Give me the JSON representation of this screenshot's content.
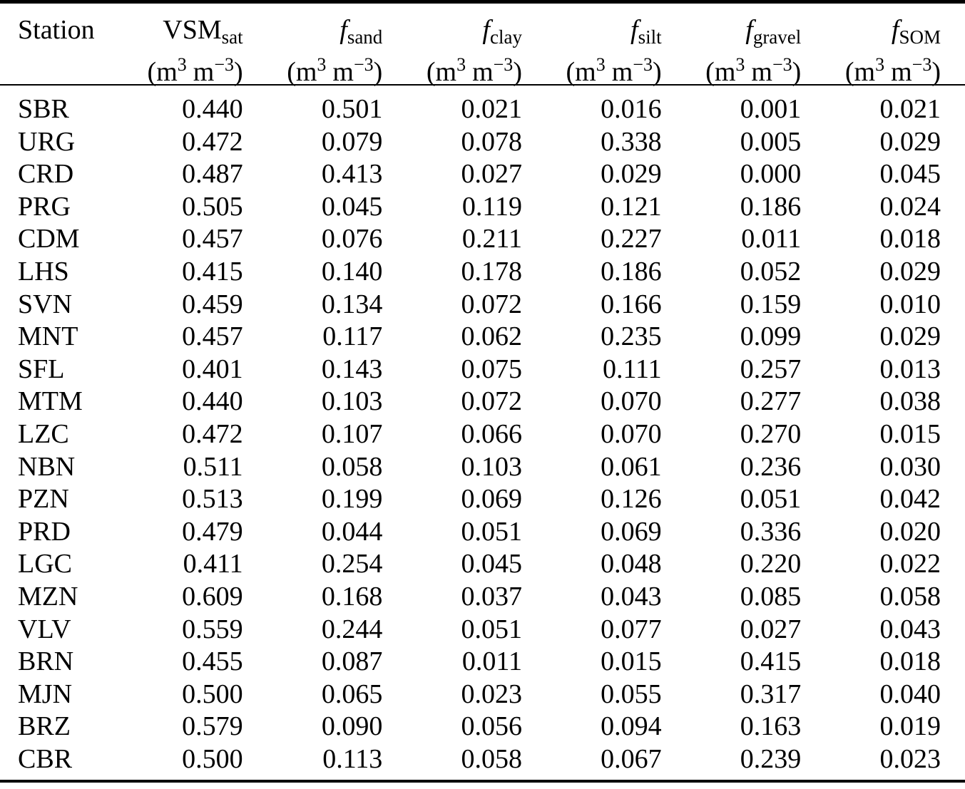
{
  "table": {
    "columns": [
      {
        "main": "Station",
        "sub": "",
        "italic": false,
        "has_unit": false
      },
      {
        "main": "VSM",
        "sub": "sat",
        "italic": false,
        "has_unit": true
      },
      {
        "main": "f",
        "sub": "sand",
        "italic": true,
        "has_unit": true
      },
      {
        "main": "f",
        "sub": "clay",
        "italic": true,
        "has_unit": true
      },
      {
        "main": "f",
        "sub": "silt",
        "italic": true,
        "has_unit": true
      },
      {
        "main": "f",
        "sub": "gravel",
        "italic": true,
        "has_unit": true
      },
      {
        "main": "f",
        "sub": "SOM",
        "italic": true,
        "has_unit": true
      }
    ],
    "unit": {
      "open": "(m",
      "sup_a": "3",
      "mid": "m",
      "sup_b": "−3",
      "close": ")"
    },
    "rows": [
      {
        "station": "SBR",
        "values": [
          "0.440",
          "0.501",
          "0.021",
          "0.016",
          "0.001",
          "0.021"
        ]
      },
      {
        "station": "URG",
        "values": [
          "0.472",
          "0.079",
          "0.078",
          "0.338",
          "0.005",
          "0.029"
        ]
      },
      {
        "station": "CRD",
        "values": [
          "0.487",
          "0.413",
          "0.027",
          "0.029",
          "0.000",
          "0.045"
        ]
      },
      {
        "station": "PRG",
        "values": [
          "0.505",
          "0.045",
          "0.119",
          "0.121",
          "0.186",
          "0.024"
        ]
      },
      {
        "station": "CDM",
        "values": [
          "0.457",
          "0.076",
          "0.211",
          "0.227",
          "0.011",
          "0.018"
        ]
      },
      {
        "station": "LHS",
        "values": [
          "0.415",
          "0.140",
          "0.178",
          "0.186",
          "0.052",
          "0.029"
        ]
      },
      {
        "station": "SVN",
        "values": [
          "0.459",
          "0.134",
          "0.072",
          "0.166",
          "0.159",
          "0.010"
        ]
      },
      {
        "station": "MNT",
        "values": [
          "0.457",
          "0.117",
          "0.062",
          "0.235",
          "0.099",
          "0.029"
        ]
      },
      {
        "station": "SFL",
        "values": [
          "0.401",
          "0.143",
          "0.075",
          "0.111",
          "0.257",
          "0.013"
        ]
      },
      {
        "station": "MTM",
        "values": [
          "0.440",
          "0.103",
          "0.072",
          "0.070",
          "0.277",
          "0.038"
        ]
      },
      {
        "station": "LZC",
        "values": [
          "0.472",
          "0.107",
          "0.066",
          "0.070",
          "0.270",
          "0.015"
        ]
      },
      {
        "station": "NBN",
        "values": [
          "0.511",
          "0.058",
          "0.103",
          "0.061",
          "0.236",
          "0.030"
        ]
      },
      {
        "station": "PZN",
        "values": [
          "0.513",
          "0.199",
          "0.069",
          "0.126",
          "0.051",
          "0.042"
        ]
      },
      {
        "station": "PRD",
        "values": [
          "0.479",
          "0.044",
          "0.051",
          "0.069",
          "0.336",
          "0.020"
        ]
      },
      {
        "station": "LGC",
        "values": [
          "0.411",
          "0.254",
          "0.045",
          "0.048",
          "0.220",
          "0.022"
        ]
      },
      {
        "station": "MZN",
        "values": [
          "0.609",
          "0.168",
          "0.037",
          "0.043",
          "0.085",
          "0.058"
        ]
      },
      {
        "station": "VLV",
        "values": [
          "0.559",
          "0.244",
          "0.051",
          "0.077",
          "0.027",
          "0.043"
        ]
      },
      {
        "station": "BRN",
        "values": [
          "0.455",
          "0.087",
          "0.011",
          "0.015",
          "0.415",
          "0.018"
        ]
      },
      {
        "station": "MJN",
        "values": [
          "0.500",
          "0.065",
          "0.023",
          "0.055",
          "0.317",
          "0.040"
        ]
      },
      {
        "station": "BRZ",
        "values": [
          "0.579",
          "0.090",
          "0.056",
          "0.094",
          "0.163",
          "0.019"
        ]
      },
      {
        "station": "CBR",
        "values": [
          "0.500",
          "0.113",
          "0.058",
          "0.067",
          "0.239",
          "0.023"
        ]
      }
    ]
  }
}
